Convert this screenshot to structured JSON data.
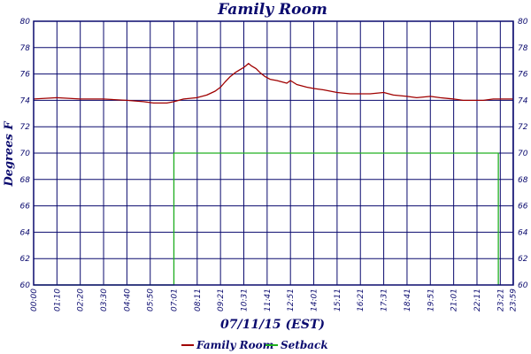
{
  "chart_data": {
    "type": "line",
    "title": "Family Room",
    "xlabel": "07/11/15 (EST)",
    "ylabel": "Degrees F",
    "ylim": [
      60,
      80
    ],
    "y_ticks": [
      60,
      62,
      64,
      66,
      68,
      70,
      72,
      74,
      76,
      78,
      80
    ],
    "x_range_minutes": [
      0,
      1440
    ],
    "x_tick_labels": [
      "00:00",
      "01:10",
      "02:20",
      "03:30",
      "04:40",
      "05:50",
      "07:01",
      "08:11",
      "09:21",
      "10:31",
      "11:41",
      "12:51",
      "14:01",
      "15:11",
      "16:21",
      "17:31",
      "18:41",
      "19:51",
      "21:01",
      "22:11",
      "23:21",
      "23:59"
    ],
    "x_tick_minutes": [
      0,
      70,
      140,
      210,
      280,
      350,
      421,
      491,
      561,
      631,
      701,
      771,
      841,
      911,
      981,
      1051,
      1121,
      1191,
      1261,
      1331,
      1401,
      1439
    ],
    "grid": true,
    "legend_position": "bottom",
    "series": [
      {
        "name": "Family Room",
        "color": "#a00000",
        "x": [
          0,
          70,
          140,
          210,
          280,
          330,
          360,
          400,
          421,
          450,
          490,
          520,
          545,
          561,
          575,
          590,
          605,
          618,
          631,
          645,
          655,
          668,
          680,
          695,
          710,
          730,
          760,
          771,
          790,
          820,
          841,
          870,
          911,
          950,
          981,
          1010,
          1051,
          1080,
          1121,
          1150,
          1191,
          1220,
          1261,
          1290,
          1320,
          1350,
          1380,
          1410,
          1439
        ],
        "y": [
          74.1,
          74.2,
          74.1,
          74.1,
          74.0,
          73.9,
          73.8,
          73.8,
          73.9,
          74.1,
          74.2,
          74.4,
          74.7,
          75.0,
          75.4,
          75.8,
          76.1,
          76.3,
          76.5,
          76.8,
          76.6,
          76.4,
          76.1,
          75.8,
          75.6,
          75.5,
          75.3,
          75.5,
          75.2,
          75.0,
          74.9,
          74.8,
          74.6,
          74.5,
          74.5,
          74.5,
          74.6,
          74.4,
          74.3,
          74.2,
          74.3,
          74.2,
          74.1,
          74.0,
          74.0,
          74.0,
          74.1,
          74.1,
          74.1
        ]
      },
      {
        "name": "Setback",
        "color": "#20b020",
        "x": [
          0,
          421,
          421,
          421,
          421,
          1395,
          1395
        ],
        "y": [
          60,
          60,
          65,
          60,
          70,
          70,
          60
        ]
      }
    ]
  }
}
